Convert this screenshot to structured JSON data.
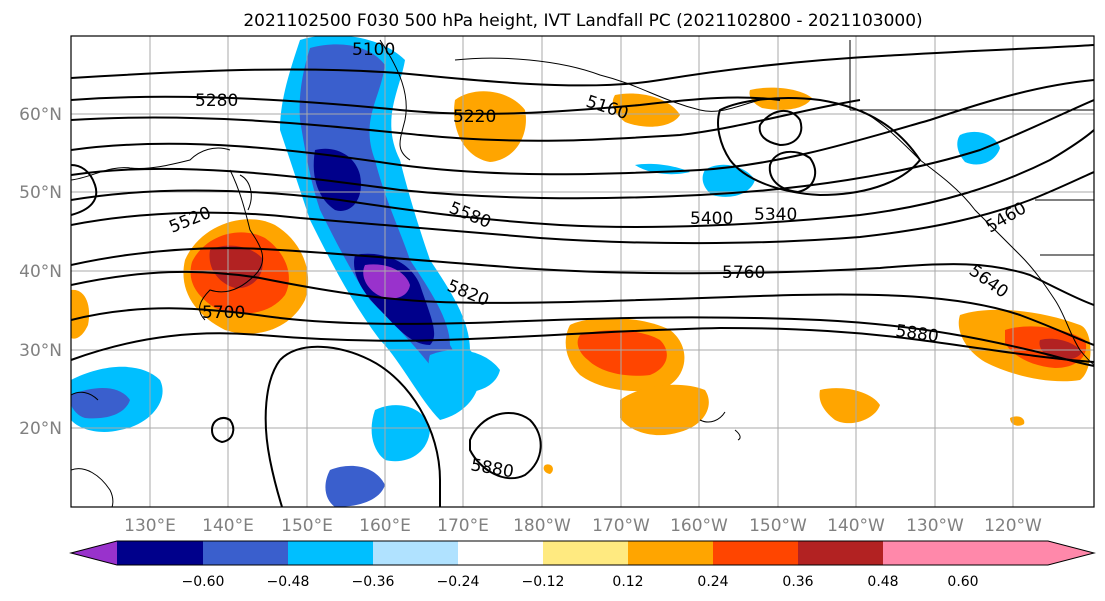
{
  "title": "2021102500 F030 500 hPa height, IVT Landfall PC (2021102800 - 2021103000)",
  "map": {
    "lat_labels": [
      "60°N",
      "50°N",
      "40°N",
      "30°N",
      "20°N"
    ],
    "lon_labels": [
      "130°E",
      "140°E",
      "150°E",
      "160°E",
      "170°E",
      "180°W",
      "170°W",
      "160°W",
      "150°W",
      "140°W",
      "130°W",
      "120°W"
    ],
    "contour_labels": [
      "5100",
      "5280",
      "5220",
      "5160",
      "5520",
      "5580",
      "5400",
      "5340",
      "5460",
      "5760",
      "5640",
      "5820",
      "5700",
      "5880",
      "5880"
    ]
  },
  "colorbar": {
    "tick_labels": [
      "−0.60",
      "−0.48",
      "−0.36",
      "−0.24",
      "−0.12",
      "0.12",
      "0.24",
      "0.36",
      "0.48",
      "0.60"
    ],
    "colors": [
      "#9932cc",
      "#00008b",
      "#3a5fcd",
      "#00bfff",
      "#b0e2ff",
      "#ffffff",
      "#ffea80",
      "#ffa500",
      "#ff4500",
      "#b22222",
      "#ff88aa"
    ]
  }
}
